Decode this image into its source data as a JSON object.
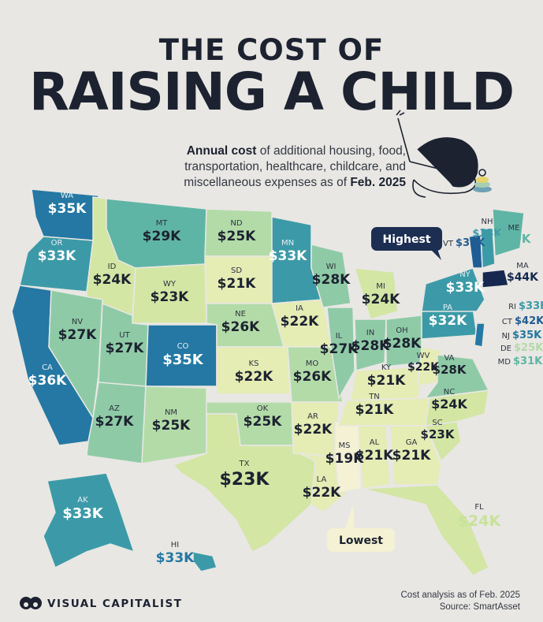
{
  "title": {
    "line1": "THE COST OF",
    "line2": "RAISING A CHILD"
  },
  "subtitle": {
    "bold1": "Annual cost",
    "text1": " of additional housing, food, transportation, healthcare, childcare, and miscellaneous expenses as of ",
    "bold2": "Feb. 2025"
  },
  "callouts": {
    "highest": "Highest",
    "lowest": "Lowest"
  },
  "legend_scale": {
    "min_color": "#f2efcf",
    "max_color": "#1b3a66"
  },
  "states": [
    {
      "abbr": "WA",
      "value": "$35K"
    },
    {
      "abbr": "OR",
      "value": "$33K"
    },
    {
      "abbr": "CA",
      "value": "$36K"
    },
    {
      "abbr": "ID",
      "value": "$24K"
    },
    {
      "abbr": "NV",
      "value": "$27K"
    },
    {
      "abbr": "MT",
      "value": "$29K"
    },
    {
      "abbr": "WY",
      "value": "$23K"
    },
    {
      "abbr": "UT",
      "value": "$27K"
    },
    {
      "abbr": "CO",
      "value": "$35K"
    },
    {
      "abbr": "AZ",
      "value": "$27K"
    },
    {
      "abbr": "NM",
      "value": "$25K"
    },
    {
      "abbr": "ND",
      "value": "$25K"
    },
    {
      "abbr": "SD",
      "value": "$21K"
    },
    {
      "abbr": "NE",
      "value": "$26K"
    },
    {
      "abbr": "KS",
      "value": "$22K"
    },
    {
      "abbr": "OK",
      "value": "$25K"
    },
    {
      "abbr": "TX",
      "value": "$23K"
    },
    {
      "abbr": "MN",
      "value": "$33K"
    },
    {
      "abbr": "IA",
      "value": "$22K"
    },
    {
      "abbr": "MO",
      "value": "$26K"
    },
    {
      "abbr": "AR",
      "value": "$22K"
    },
    {
      "abbr": "LA",
      "value": "$22K"
    },
    {
      "abbr": "WI",
      "value": "$28K"
    },
    {
      "abbr": "IL",
      "value": "$27K"
    },
    {
      "abbr": "MS",
      "value": "$19K"
    },
    {
      "abbr": "MI",
      "value": "$24K"
    },
    {
      "abbr": "IN",
      "value": "$28K"
    },
    {
      "abbr": "KY",
      "value": "$21K"
    },
    {
      "abbr": "TN",
      "value": "$21K"
    },
    {
      "abbr": "AL",
      "value": "$21K"
    },
    {
      "abbr": "OH",
      "value": "$28K"
    },
    {
      "abbr": "WV",
      "value": "$22K"
    },
    {
      "abbr": "GA",
      "value": "$21K"
    },
    {
      "abbr": "FL",
      "value": "$24K"
    },
    {
      "abbr": "SC",
      "value": "$23K"
    },
    {
      "abbr": "NC",
      "value": "$24K"
    },
    {
      "abbr": "VA",
      "value": "$28K"
    },
    {
      "abbr": "PA",
      "value": "$32K"
    },
    {
      "abbr": "NY",
      "value": "$33K"
    },
    {
      "abbr": "VT",
      "value": "$38K"
    },
    {
      "abbr": "NH",
      "value": "$33K"
    },
    {
      "abbr": "ME",
      "value": "$29K"
    },
    {
      "abbr": "MA",
      "value": "$44K"
    },
    {
      "abbr": "RI",
      "value": "$33K"
    },
    {
      "abbr": "CT",
      "value": "$42K"
    },
    {
      "abbr": "NJ",
      "value": "$35K"
    },
    {
      "abbr": "DE",
      "value": "$25K"
    },
    {
      "abbr": "MD",
      "value": "$31K"
    },
    {
      "abbr": "AK",
      "value": "$33K"
    },
    {
      "abbr": "HI",
      "value": "$33K"
    }
  ],
  "footer": {
    "brand": "VISUAL CAPITALIST",
    "source_line1": "Cost analysis as of Feb. 2025",
    "source_line2": "Source: SmartAsset"
  }
}
